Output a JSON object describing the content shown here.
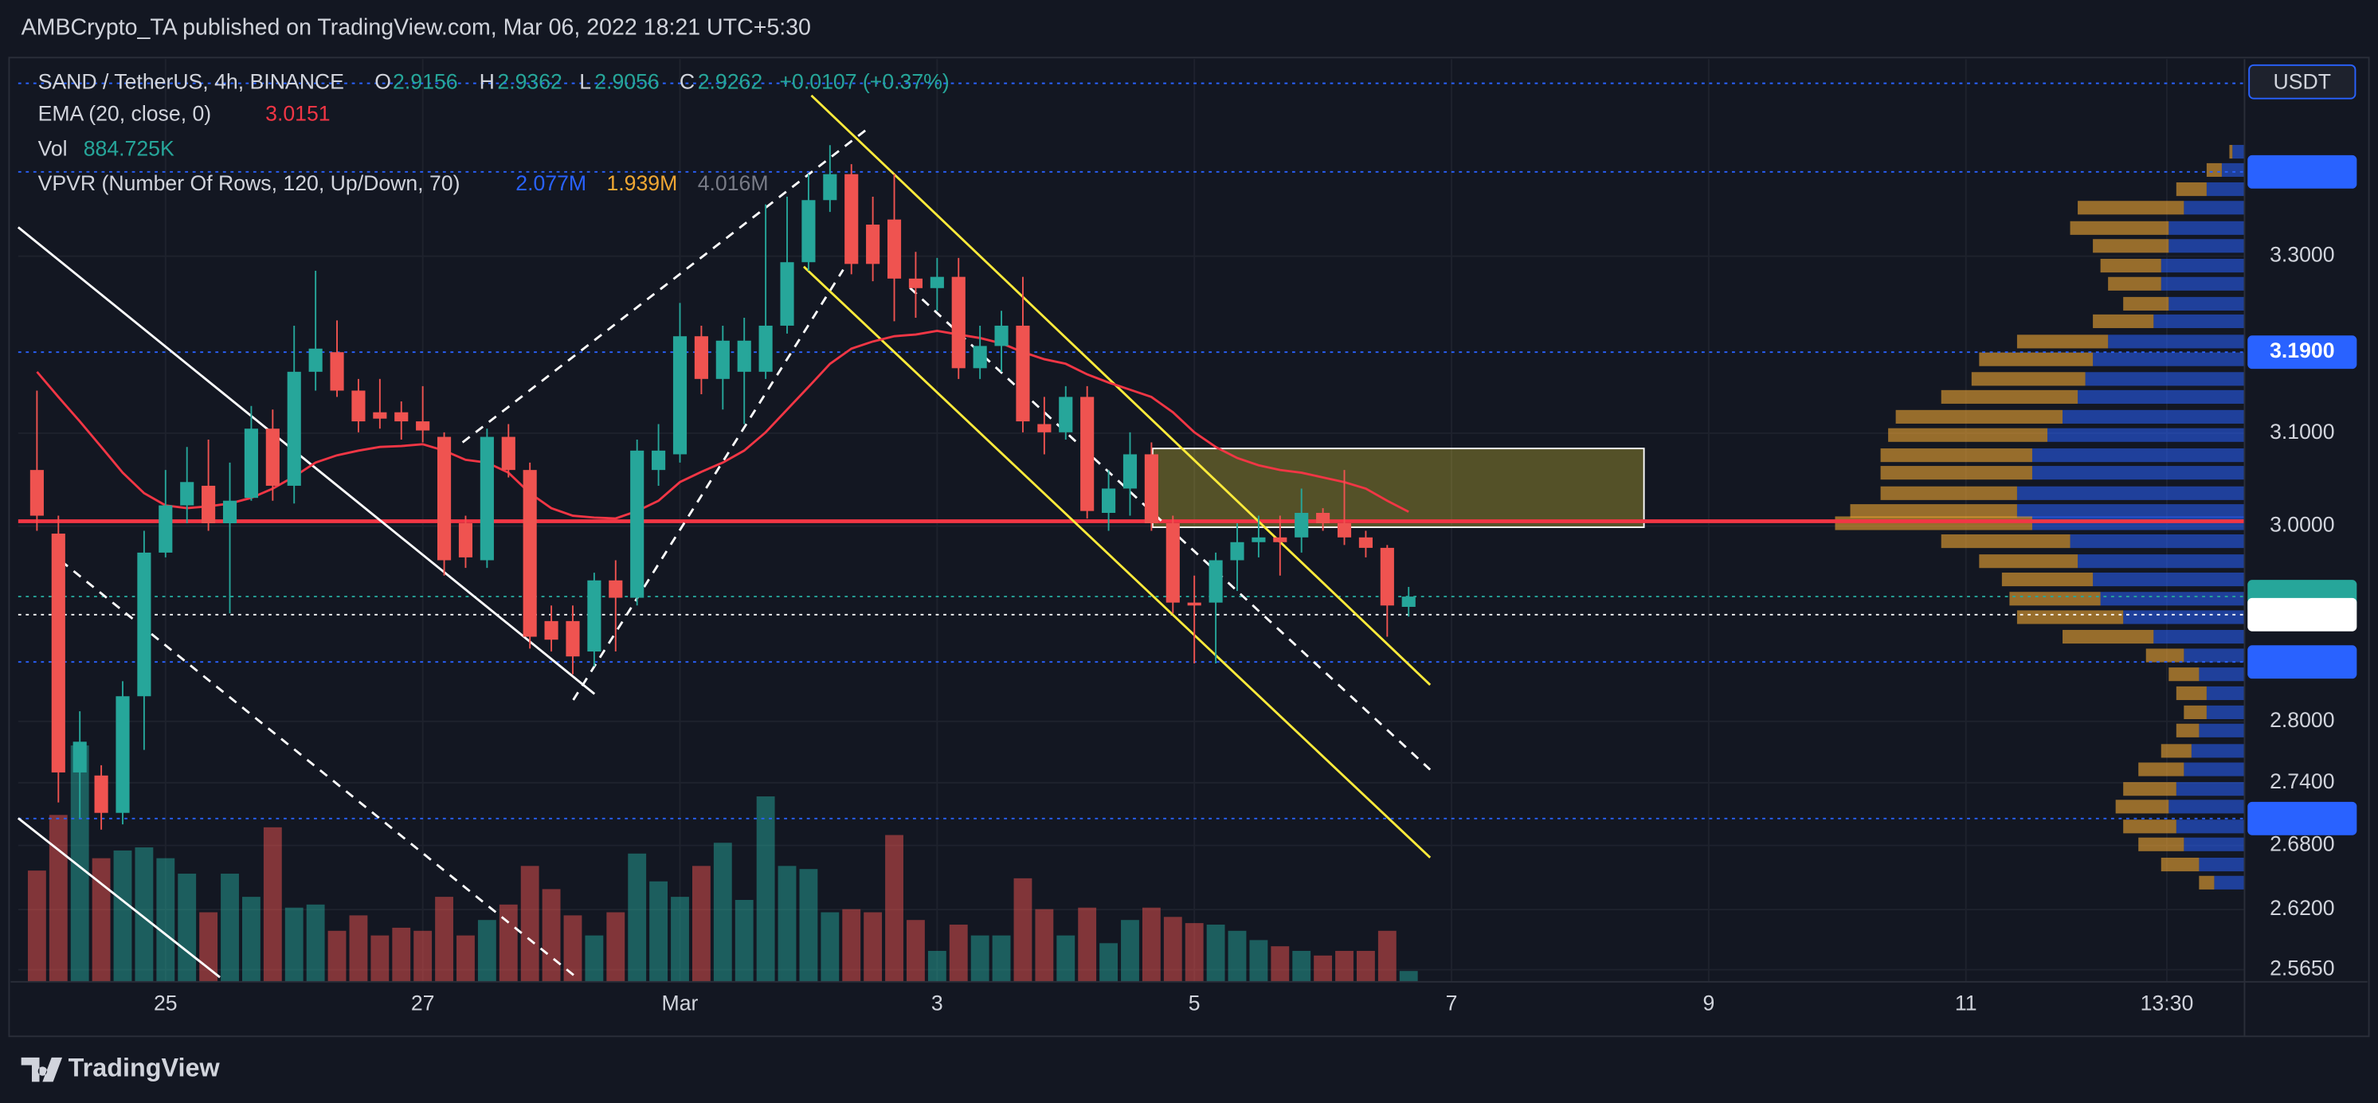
{
  "chart_data": {
    "type": "candlestick",
    "publisher": "AMBCrypto_TA published on TradingView.com, Mar 06, 2022 18:21 UTC+5:30",
    "brand": "TradingView",
    "title": "SAND / TetherUS, 4h, BINANCE",
    "ohlc_labels": [
      "O",
      "H",
      "L",
      "C"
    ],
    "change": "+0.0107 (+0.37%)",
    "currency": "USDT",
    "log_scale": true,
    "grid": true,
    "up_color": "#26a69a",
    "down_color": "#ef5350",
    "xlim": [
      -27.5,
      388
    ],
    "xticks": [
      {
        "value": 0,
        "label": "25"
      },
      {
        "value": 48,
        "label": "27"
      },
      {
        "value": 96,
        "label": "Mar"
      },
      {
        "value": 144,
        "label": "3"
      },
      {
        "value": 192,
        "label": "5"
      },
      {
        "value": 240,
        "label": "7"
      },
      {
        "value": 288,
        "label": "9"
      },
      {
        "value": 336,
        "label": "11"
      },
      {
        "value": 373.5,
        "label": "13:30"
      }
    ],
    "ylim": [
      2.554,
      3.536
    ],
    "yticks": [
      {
        "value": 3.3,
        "label": "3.3000"
      },
      {
        "value": 3.1,
        "label": "3.1000"
      },
      {
        "value": 3.0,
        "label": "3.0000"
      },
      {
        "value": 2.8,
        "label": "2.8000"
      },
      {
        "value": 2.74,
        "label": "2.7400"
      },
      {
        "value": 2.68,
        "label": "2.6800"
      },
      {
        "value": 2.62,
        "label": "2.6200"
      },
      {
        "value": 2.565,
        "label": "2.5650"
      }
    ],
    "price_labels": [
      {
        "value": 3.3997,
        "color": "#2962ff"
      },
      {
        "value": 3.19,
        "label": "3.1900",
        "color": "#2962ff"
      },
      {
        "value": 2.9262,
        "color": "#26a69a"
      },
      {
        "value": 2.9076,
        "color": "#ffffff"
      },
      {
        "value": 2.8594,
        "color": "#2962ff"
      },
      {
        "value": 2.7056,
        "color": "#2962ff"
      }
    ],
    "x": [
      -24,
      -20,
      -16,
      -12,
      -8,
      -4,
      0,
      4,
      8,
      12,
      16,
      20,
      24,
      28,
      32,
      36,
      40,
      44,
      48,
      52,
      56,
      60,
      64,
      68,
      72,
      76,
      80,
      84,
      88,
      92,
      96,
      100,
      104,
      108,
      112,
      116,
      120,
      124,
      128,
      132,
      136,
      140,
      144,
      148,
      152,
      156,
      160,
      164,
      168,
      172,
      176,
      180,
      184,
      188,
      192,
      196,
      200,
      204,
      208,
      212,
      216,
      220,
      224,
      228,
      232
    ],
    "open": [
      3.06,
      2.992,
      2.75,
      2.747,
      2.711,
      2.825,
      2.972,
      3.022,
      3.043,
      3.003,
      3.03,
      3.105,
      3.043,
      3.168,
      3.19,
      3.147,
      3.123,
      3.123,
      3.113,
      3.096,
      3.003,
      2.964,
      3.096,
      3.06,
      2.901,
      2.901,
      2.87,
      2.943,
      2.925,
      3.06,
      3.077,
      3.208,
      3.16,
      3.168,
      3.168,
      3.22,
      3.293,
      3.366,
      3.397,
      3.337,
      3.343,
      3.274,
      3.263,
      3.276,
      3.172,
      3.197,
      3.22,
      3.11,
      3.101,
      3.14,
      3.014,
      3.04,
      3.077,
      3.003,
      2.92,
      2.92,
      2.964,
      2.983,
      2.988,
      2.988,
      3.014,
      3.003,
      2.988,
      2.977,
      2.9156
    ],
    "high": [
      3.147,
      3.011,
      2.81,
      2.757,
      2.84,
      2.995,
      3.06,
      3.085,
      3.093,
      3.068,
      3.13,
      3.126,
      3.22,
      3.283,
      3.226,
      3.16,
      3.16,
      3.135,
      3.152,
      3.101,
      3.011,
      3.105,
      3.11,
      3.068,
      2.917,
      2.917,
      2.951,
      2.964,
      3.093,
      3.11,
      3.246,
      3.22,
      3.22,
      3.229,
      3.361,
      3.37,
      3.397,
      3.432,
      3.409,
      3.37,
      3.397,
      3.305,
      3.298,
      3.298,
      3.22,
      3.237,
      3.276,
      3.14,
      3.152,
      3.152,
      3.06,
      3.101,
      3.09,
      3.011,
      2.948,
      2.972,
      3.003,
      3.011,
      3.011,
      3.04,
      3.019,
      3.06,
      2.995,
      2.98,
      2.9362
    ],
    "low": [
      2.995,
      2.721,
      2.706,
      2.695,
      2.7,
      2.772,
      2.967,
      3.003,
      2.995,
      2.909,
      3.027,
      3.027,
      3.024,
      3.147,
      3.14,
      3.101,
      3.105,
      3.093,
      3.09,
      2.948,
      2.956,
      2.956,
      3.052,
      2.873,
      2.87,
      2.847,
      2.855,
      2.87,
      2.917,
      3.043,
      3.068,
      3.143,
      3.126,
      3.11,
      3.16,
      3.211,
      3.283,
      3.352,
      3.279,
      3.271,
      3.225,
      3.229,
      3.237,
      3.16,
      3.16,
      3.168,
      3.101,
      3.077,
      3.093,
      3.008,
      2.995,
      3.011,
      2.995,
      2.909,
      2.858,
      2.858,
      2.932,
      2.967,
      2.948,
      2.972,
      2.995,
      2.98,
      2.967,
      2.885,
      2.9056
    ],
    "close": [
      3.011,
      2.75,
      2.78,
      2.711,
      2.825,
      2.972,
      3.022,
      3.047,
      3.003,
      3.027,
      3.105,
      3.043,
      3.168,
      3.194,
      3.147,
      3.113,
      3.116,
      3.113,
      3.103,
      2.964,
      2.967,
      3.096,
      3.06,
      2.885,
      2.882,
      2.865,
      2.943,
      2.925,
      3.081,
      3.081,
      3.208,
      3.16,
      3.203,
      3.203,
      3.22,
      3.293,
      3.366,
      3.397,
      3.291,
      3.291,
      3.274,
      3.263,
      3.276,
      3.172,
      3.197,
      3.22,
      3.113,
      3.101,
      3.14,
      3.016,
      3.04,
      3.077,
      3.003,
      2.92,
      2.917,
      2.964,
      2.983,
      2.988,
      2.983,
      3.014,
      3.003,
      2.988,
      2.977,
      2.917,
      2.9262
    ],
    "ema": {
      "name": "EMA (20, close, 0)",
      "color": "#f23645",
      "values": [
        3.168,
        3.14,
        3.113,
        3.085,
        3.057,
        3.035,
        3.022,
        3.019,
        3.021,
        3.024,
        3.03,
        3.04,
        3.053,
        3.068,
        3.076,
        3.081,
        3.085,
        3.086,
        3.088,
        3.081,
        3.071,
        3.068,
        3.057,
        3.035,
        3.019,
        3.011,
        3.009,
        3.008,
        3.016,
        3.027,
        3.047,
        3.058,
        3.068,
        3.081,
        3.101,
        3.126,
        3.151,
        3.177,
        3.194,
        3.202,
        3.208,
        3.21,
        3.214,
        3.21,
        3.206,
        3.2,
        3.19,
        3.182,
        3.177,
        3.165,
        3.156,
        3.148,
        3.14,
        3.123,
        3.101,
        3.085,
        3.073,
        3.065,
        3.06,
        3.057,
        3.052,
        3.047,
        3.04,
        3.027,
        3.0151
      ]
    },
    "volume": {
      "name": "Vol",
      "readout": "884.725K",
      "values": [
        9101000,
        13651000,
        19339000,
        10112000,
        10744000,
        10997000,
        10112000,
        8848000,
        5688000,
        8848000,
        6952000,
        12640000,
        6067000,
        6320000,
        4171000,
        5435000,
        3792000,
        4424000,
        4171000,
        6952000,
        3792000,
        5056000,
        6320000,
        9480000,
        7584000,
        5435000,
        3792000,
        5688000,
        10491000,
        8216000,
        6952000,
        9480000,
        11376000,
        6699000,
        15168000,
        9480000,
        9227000,
        5688000,
        5941000,
        5688000,
        12008000,
        5056000,
        2528000,
        4677000,
        3792000,
        3792000,
        8469000,
        5941000,
        3792000,
        6067000,
        3160000,
        5056000,
        6067000,
        5309000,
        4803000,
        4677000,
        4171000,
        3413000,
        2907000,
        2528000,
        2149000,
        2528000,
        2528000,
        4171000,
        884725
      ]
    },
    "vpvr": {
      "name": "VPVR (Number Of Rows, 120, Up/Down, 70)",
      "readouts": [
        "2.077M",
        "1.939M",
        "4.016M"
      ],
      "up_color": "#2962ff",
      "down_color": "#f0a733",
      "prices": [
        3.424,
        3.402,
        3.379,
        3.357,
        3.333,
        3.312,
        3.289,
        3.268,
        3.245,
        3.225,
        3.202,
        3.182,
        3.16,
        3.14,
        3.118,
        3.098,
        3.076,
        3.057,
        3.035,
        3.016,
        3.003,
        2.984,
        2.963,
        2.944,
        2.924,
        2.905,
        2.885,
        2.866,
        2.847,
        2.828,
        2.809,
        2.791,
        2.771,
        2.753,
        2.734,
        2.717,
        2.698,
        2.681,
        2.662,
        2.645
      ],
      "up": [
        8,
        15,
        25,
        40,
        50,
        50,
        55,
        55,
        50,
        60,
        90,
        100,
        105,
        110,
        120,
        130,
        140,
        140,
        150,
        150,
        140,
        115,
        110,
        100,
        95,
        80,
        60,
        40,
        30,
        25,
        25,
        30,
        35,
        40,
        45,
        50,
        45,
        40,
        30,
        20
      ],
      "down": [
        2,
        10,
        20,
        70,
        65,
        50,
        40,
        35,
        30,
        40,
        60,
        75,
        75,
        90,
        110,
        105,
        100,
        100,
        90,
        110,
        130,
        85,
        65,
        60,
        60,
        70,
        60,
        25,
        20,
        20,
        15,
        15,
        20,
        30,
        35,
        35,
        35,
        30,
        25,
        10
      ]
    }
  }
}
